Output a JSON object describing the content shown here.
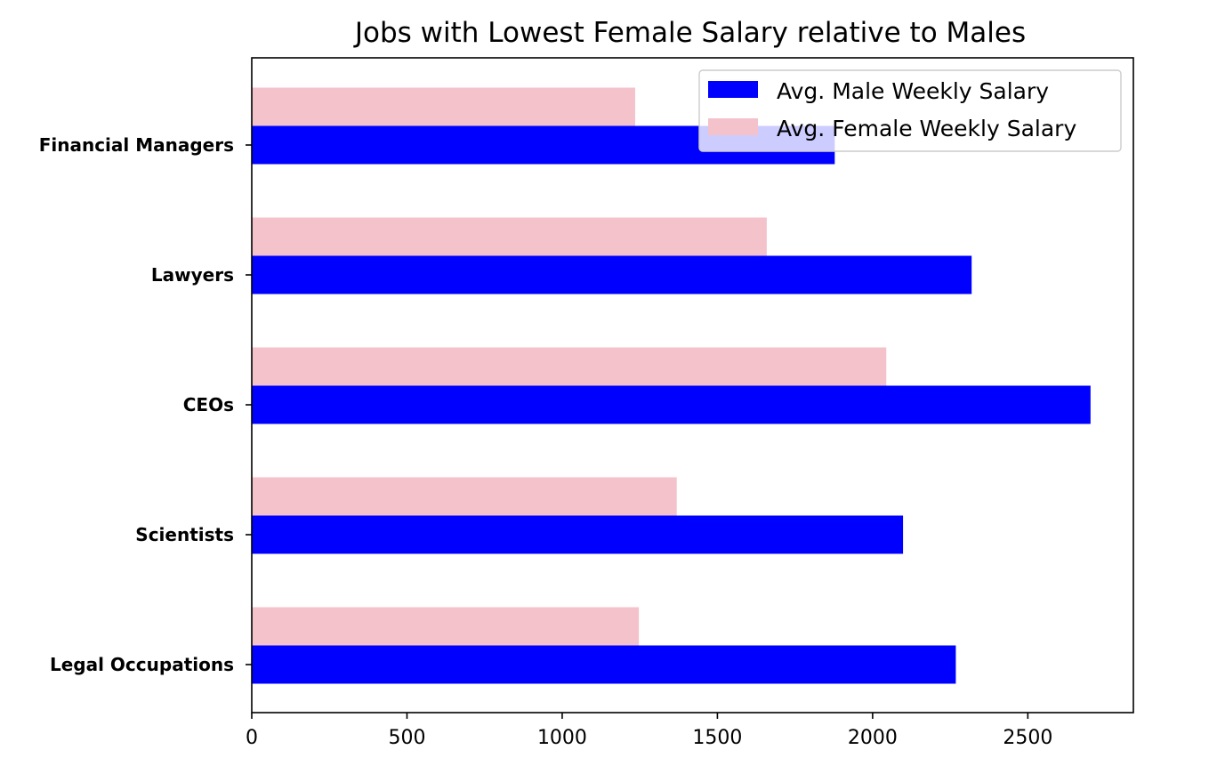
{
  "chart_data": {
    "type": "bar",
    "orientation": "horizontal",
    "title": "Jobs with Lowest Female Salary relative to Males",
    "xlabel": "",
    "ylabel": "",
    "categories": [
      "Legal Occupations",
      "Scientists",
      "CEOs",
      "Lawyers",
      "Financial Managers"
    ],
    "series": [
      {
        "name": "Avg. Male Weekly Salary",
        "color": "#0000ff",
        "values": [
          2268,
          2098,
          2702,
          2319,
          1878
        ]
      },
      {
        "name": "Avg. Female Weekly Salary",
        "color": "#f4c2cb",
        "values": [
          1247,
          1369,
          2044,
          1659,
          1235
        ]
      }
    ],
    "xlim": [
      0,
      2840
    ],
    "xticks": [
      0,
      500,
      1000,
      1500,
      2000,
      2500
    ],
    "grid": false,
    "legend_position": "top-right"
  }
}
